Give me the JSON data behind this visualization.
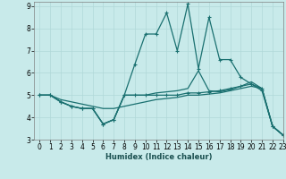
{
  "xlabel": "Humidex (Indice chaleur)",
  "background_color": "#c8eaea",
  "grid_color": "#b0d8d8",
  "line_color": "#1a7070",
  "xlim": [
    -0.5,
    23
  ],
  "ylim": [
    3,
    9.2
  ],
  "xticks": [
    0,
    1,
    2,
    3,
    4,
    5,
    6,
    7,
    8,
    9,
    10,
    11,
    12,
    13,
    14,
    15,
    16,
    17,
    18,
    19,
    20,
    21,
    22,
    23
  ],
  "yticks": [
    3,
    4,
    5,
    6,
    7,
    8,
    9
  ],
  "line1_x": [
    0,
    1,
    2,
    3,
    4,
    5,
    6,
    7,
    8,
    9,
    10,
    11,
    12,
    13,
    14,
    15,
    16,
    17,
    18,
    19,
    20,
    21,
    22,
    23
  ],
  "line1_y": [
    5.0,
    5.0,
    4.7,
    4.5,
    4.4,
    4.4,
    3.7,
    3.9,
    5.0,
    5.0,
    5.0,
    5.0,
    5.0,
    5.0,
    5.1,
    5.1,
    5.15,
    5.2,
    5.3,
    5.4,
    5.5,
    5.3,
    3.6,
    3.2
  ],
  "line2_x": [
    0,
    1,
    2,
    3,
    4,
    5,
    6,
    7,
    8,
    9,
    10,
    11,
    12,
    13,
    14,
    15,
    16,
    17,
    18,
    19,
    20,
    21,
    22,
    23
  ],
  "line2_y": [
    5.0,
    5.0,
    4.8,
    4.7,
    4.6,
    4.5,
    4.4,
    4.4,
    4.5,
    4.6,
    4.7,
    4.8,
    4.85,
    4.9,
    5.0,
    5.0,
    5.05,
    5.1,
    5.2,
    5.3,
    5.4,
    5.3,
    3.6,
    3.2
  ],
  "line3_x": [
    0,
    1,
    2,
    3,
    4,
    5,
    6,
    7,
    8,
    9,
    10,
    11,
    12,
    13,
    14,
    15,
    16,
    17,
    18,
    19,
    20,
    21,
    22,
    23
  ],
  "line3_y": [
    5.0,
    5.0,
    4.7,
    4.5,
    4.4,
    4.4,
    3.7,
    3.9,
    5.0,
    6.4,
    7.75,
    7.75,
    8.7,
    7.0,
    9.1,
    6.2,
    8.5,
    6.6,
    6.6,
    5.8,
    5.5,
    5.2,
    3.6,
    3.2
  ],
  "line4_x": [
    0,
    1,
    2,
    3,
    4,
    5,
    6,
    7,
    8,
    9,
    10,
    11,
    12,
    13,
    14,
    15,
    16,
    17,
    18,
    19,
    20,
    21,
    22,
    23
  ],
  "line4_y": [
    5.0,
    5.0,
    4.7,
    4.5,
    4.4,
    4.4,
    3.7,
    3.9,
    5.0,
    5.0,
    5.0,
    5.1,
    5.15,
    5.2,
    5.3,
    6.1,
    5.2,
    5.15,
    5.25,
    5.4,
    5.6,
    5.3,
    3.6,
    3.2
  ]
}
